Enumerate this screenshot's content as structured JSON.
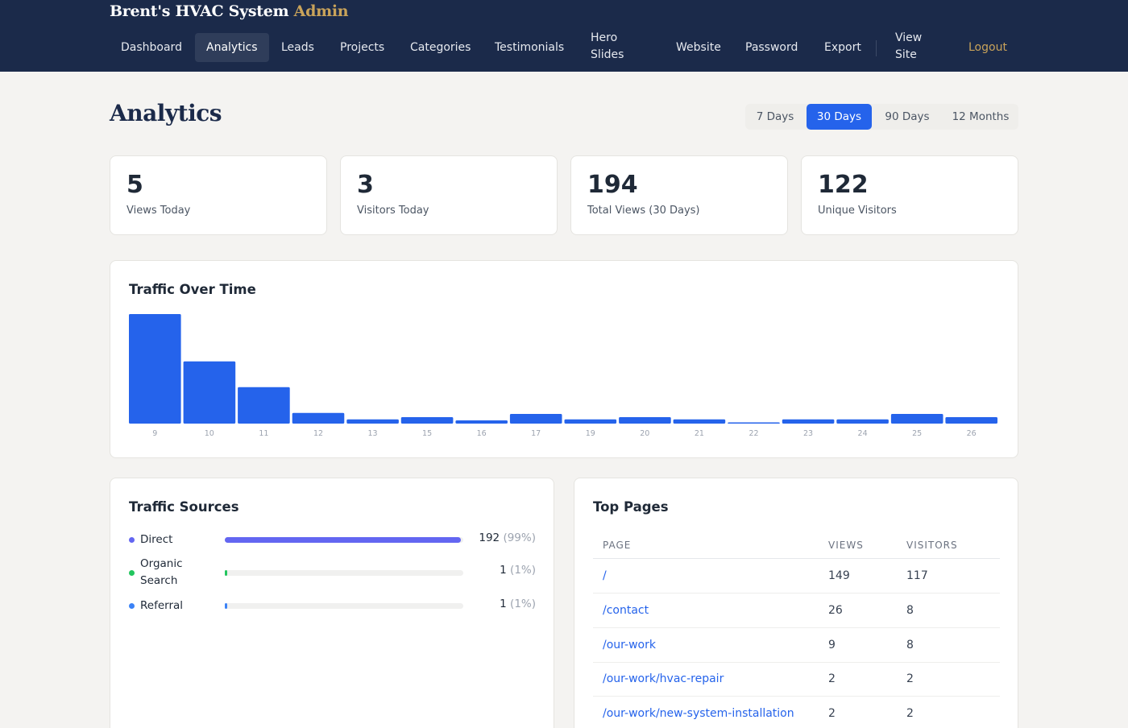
{
  "header": {
    "brand": "Brent's HVAC System",
    "brand_accent": "Admin",
    "nav": [
      {
        "label": "Dashboard"
      },
      {
        "label": "Analytics",
        "active": true
      },
      {
        "label": "Leads"
      },
      {
        "label": "Projects"
      },
      {
        "label": "Categories"
      },
      {
        "label": "Testimonials"
      },
      {
        "label": "Hero Slides"
      },
      {
        "label": "Website"
      },
      {
        "label": "Password"
      },
      {
        "label": "Export"
      },
      {
        "label": "View Site"
      },
      {
        "label": "Logout"
      }
    ]
  },
  "page": {
    "title": "Analytics",
    "ranges": [
      {
        "label": "7 Days"
      },
      {
        "label": "30 Days",
        "active": true
      },
      {
        "label": "90 Days"
      },
      {
        "label": "12 Months"
      }
    ]
  },
  "stats": [
    {
      "value": "5",
      "label": "Views Today"
    },
    {
      "value": "3",
      "label": "Visitors Today"
    },
    {
      "value": "194",
      "label": "Total Views (30 Days)"
    },
    {
      "value": "122",
      "label": "Unique Visitors"
    }
  ],
  "traffic": {
    "title": "Traffic Over Time"
  },
  "chart_data": {
    "type": "bar",
    "title": "Traffic Over Time",
    "categories": [
      "9",
      "10",
      "11",
      "12",
      "13",
      "15",
      "16",
      "17",
      "19",
      "20",
      "21",
      "22",
      "23",
      "24",
      "25",
      "26"
    ],
    "values": [
      51,
      29,
      17,
      5,
      2,
      3,
      1.5,
      4.5,
      2,
      3,
      2,
      0.5,
      2,
      2,
      4.5,
      3
    ],
    "ylim": [
      0,
      51
    ],
    "color": "#2563eb",
    "grid": false,
    "xlabel": "",
    "ylabel": ""
  },
  "sources": {
    "title": "Traffic Sources",
    "items": [
      {
        "name": "Direct",
        "count": "192",
        "pct": "(99%)",
        "share": 0.99,
        "color": "#6366f1",
        "dot": "#6366f1"
      },
      {
        "name": "Organic Search",
        "count": "1",
        "pct": "(1%)",
        "share": 0.01,
        "color": "#22c55e",
        "dot": "#22c55e"
      },
      {
        "name": "Referral",
        "count": "1",
        "pct": "(1%)",
        "share": 0.01,
        "color": "#3b82f6",
        "dot": "#3b82f6"
      }
    ]
  },
  "top_pages": {
    "title": "Top Pages",
    "columns": [
      "PAGE",
      "VIEWS",
      "VISITORS"
    ],
    "rows": [
      {
        "page": "/",
        "views": "149",
        "visitors": "117"
      },
      {
        "page": "/contact",
        "views": "26",
        "visitors": "8"
      },
      {
        "page": "/our-work",
        "views": "9",
        "visitors": "8"
      },
      {
        "page": "/our-work/hvac-repair",
        "views": "2",
        "visitors": "2"
      },
      {
        "page": "/our-work/new-system-installation",
        "views": "2",
        "visitors": "2"
      }
    ]
  }
}
